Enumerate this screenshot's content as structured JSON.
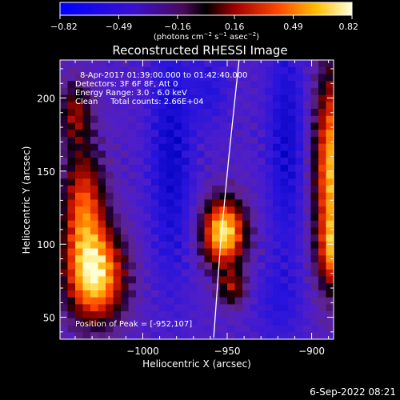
{
  "chart_data": {
    "type": "heatmap",
    "title": "Reconstructed RHESSI Image",
    "xlabel": "Heliocentric X (arcsec)",
    "ylabel": "Heliocentric Y (arcsec)",
    "xlim": [
      -1049,
      -887
    ],
    "ylim": [
      35,
      226
    ],
    "xticks": [
      -1000,
      -950,
      -900
    ],
    "xtick_labels": [
      "−1000",
      "−950",
      "−900"
    ],
    "yticks": [
      50,
      100,
      150,
      200
    ],
    "ytick_labels": [
      "50",
      "100",
      "150",
      "200"
    ],
    "colorbar": {
      "range": [
        -0.82,
        0.82
      ],
      "ticks": [
        -0.82,
        -0.49,
        -0.16,
        0.16,
        0.49,
        0.82
      ],
      "tick_labels": [
        "−0.82",
        "−0.49",
        "−0.16",
        "0.16",
        "0.49",
        "0.82"
      ],
      "label_base": "(photons cm",
      "label_exp1": "−2",
      "label_mid1": " s",
      "label_exp2": "−1",
      "label_mid2": " asec",
      "label_exp3": "−2",
      "label_end": ")"
    },
    "annotations": [
      "8-Apr-2017 01:39:00.000 to 01:42:40.000",
      "Detectors: 3F 6F 8F, Att 0",
      "Energy Range: 3.0 - 6.0 keV",
      "Clean     Total counts: 2.66E+04"
    ],
    "peak_label": "Position of Peak = [-952,107]",
    "peak": [
      -952,
      107
    ],
    "limb": [
      [
        -958,
        36
      ],
      [
        -954,
        100
      ],
      [
        -949,
        160
      ],
      [
        -943,
        226
      ]
    ],
    "blobs": [
      {
        "x": -1028,
        "y": 78,
        "sx": 12,
        "sy": 22,
        "amp": 1.0
      },
      {
        "x": -1035,
        "y": 125,
        "sx": 9,
        "sy": 28,
        "amp": 0.7
      },
      {
        "x": -1040,
        "y": 190,
        "sx": 7,
        "sy": 16,
        "amp": 0.45
      },
      {
        "x": -952,
        "y": 108,
        "sx": 9,
        "sy": 16,
        "amp": 1.05
      },
      {
        "x": -947,
        "y": 70,
        "sx": 6,
        "sy": 9,
        "amp": 0.45
      },
      {
        "x": -887,
        "y": 150,
        "sx": 8,
        "sy": 48,
        "amp": 0.95
      },
      {
        "x": -883,
        "y": 95,
        "sx": 8,
        "sy": 16,
        "amp": 0.6
      }
    ],
    "troughs": [
      {
        "x": -983,
        "y": 160,
        "sx": 9,
        "sy": 60,
        "amp": 0.8
      },
      {
        "x": -915,
        "y": 170,
        "sx": 8,
        "sy": 55,
        "amp": 0.75
      },
      {
        "x": -920,
        "y": 60,
        "sx": 10,
        "sy": 20,
        "amp": 0.4
      },
      {
        "x": -960,
        "y": 205,
        "sx": 8,
        "sy": 18,
        "amp": 0.45
      }
    ]
  },
  "footer": {
    "timestamp": "6-Sep-2022 08:21"
  }
}
